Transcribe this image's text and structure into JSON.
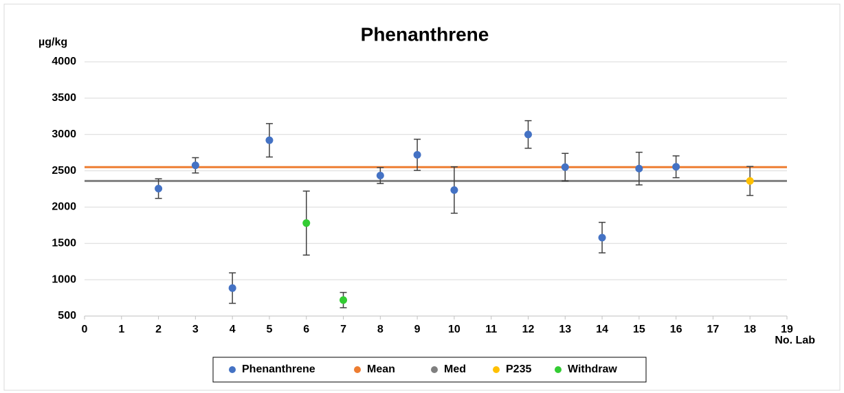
{
  "chart_data": {
    "type": "scatter",
    "title": "Phenanthrene",
    "y_label": "µg/kg",
    "x_label": "No. Lab",
    "xlim": [
      0,
      19
    ],
    "xticks": [
      0,
      1,
      2,
      3,
      4,
      5,
      6,
      7,
      8,
      9,
      10,
      11,
      12,
      13,
      14,
      15,
      16,
      17,
      18,
      19
    ],
    "ylim": [
      500,
      4000
    ],
    "yticks": [
      500,
      1000,
      1500,
      2000,
      2500,
      3000,
      3500,
      4000
    ],
    "grid": true,
    "series": [
      {
        "name": "Phenanthrene",
        "color": "#4472c4",
        "x": [
          2,
          3,
          4,
          5,
          8,
          9,
          10,
          12,
          13,
          14,
          15,
          16
        ],
        "values": [
          2255,
          2575,
          885,
          2920,
          2435,
          2720,
          2235,
          3000,
          2550,
          1580,
          2530,
          2555
        ],
        "errors": [
          135,
          105,
          210,
          230,
          110,
          215,
          320,
          190,
          190,
          210,
          225,
          150
        ]
      },
      {
        "name": "Mean",
        "color": "#ed7d31",
        "values": [
          2550
        ]
      },
      {
        "name": "Med",
        "color": "#7f7f7f",
        "values": [
          2360
        ]
      },
      {
        "name": "P235",
        "color": "#ffc000",
        "x": [
          18
        ],
        "values": [
          2360
        ],
        "errors": [
          200
        ]
      },
      {
        "name": "Withdraw",
        "color": "#33cc33",
        "x": [
          6,
          7
        ],
        "values": [
          1780,
          720
        ],
        "errors": [
          440,
          105
        ]
      }
    ]
  }
}
